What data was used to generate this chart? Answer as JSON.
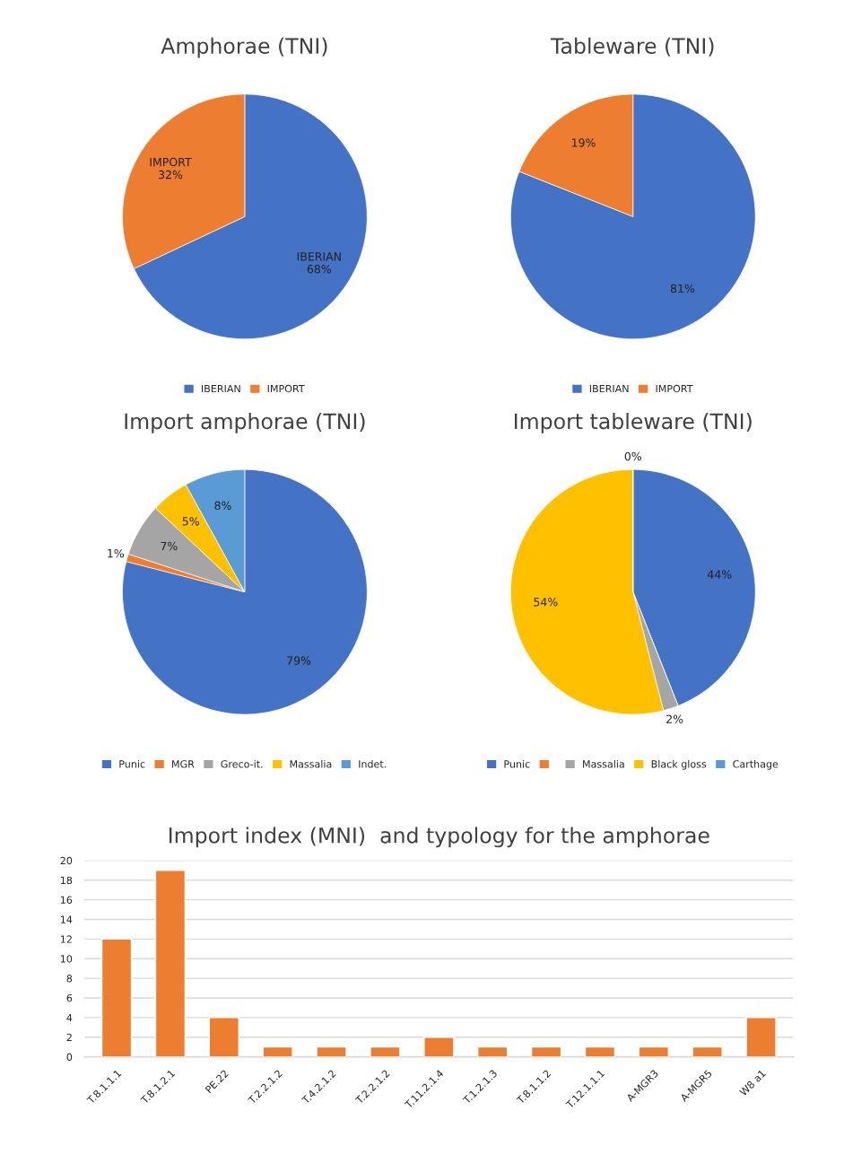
{
  "chart_data": [
    {
      "type": "pie",
      "title": "Amphorae (TNI)",
      "categories": [
        "IBERIAN",
        "IMPORT"
      ],
      "values": [
        68,
        32
      ],
      "colors": [
        "#4472c4",
        "#ed7d31"
      ],
      "value_labels": [
        "IBERIAN\n68%",
        "IMPORT\n32%"
      ],
      "legend": "bottom"
    },
    {
      "type": "pie",
      "title": "Tableware (TNI)",
      "categories": [
        "IBERIAN",
        "IMPORT"
      ],
      "values": [
        81,
        19
      ],
      "colors": [
        "#4472c4",
        "#ed7d31"
      ],
      "value_labels": [
        "81%",
        "19%"
      ],
      "legend": "bottom"
    },
    {
      "type": "pie",
      "title": "Import amphorae (TNI)",
      "categories": [
        "Punic",
        "MGR",
        "Greco-it.",
        "Massalia",
        "Indet."
      ],
      "values": [
        79,
        1,
        7,
        5,
        8
      ],
      "colors": [
        "#4472c4",
        "#ed7d31",
        "#a5a5a5",
        "#ffc000",
        "#5b9bd5"
      ],
      "value_labels": [
        "79%",
        "1%",
        "7%",
        "5%",
        "8%"
      ],
      "legend": "bottom"
    },
    {
      "type": "pie",
      "title": "Import tableware (TNI)",
      "categories": [
        "Punic",
        null,
        "Massalia",
        "Black gloss",
        "Carthage"
      ],
      "values": [
        44,
        0,
        2,
        54,
        0
      ],
      "colors": [
        "#4472c4",
        "#ed7d31",
        "#a5a5a5",
        "#ffc000",
        "#5b9bd5"
      ],
      "value_labels": [
        "44%",
        null,
        "2%",
        "54%",
        "0%"
      ],
      "legend": "bottom"
    },
    {
      "type": "bar",
      "title": "Import index (MNI)  and typology for the amphorae",
      "categories": [
        "T.8.1.1.1",
        "T.8.1.2.1",
        "PE.22",
        "T.2.2.1.2",
        "T.4.2.1.2",
        "T.2.2.1.2",
        "T.11.2.1.4",
        "T.1.2.1.3",
        "T.8.1.1.2",
        "T.12.1.1.1",
        "A-MGR3",
        "A-MGR5",
        "W8 a1"
      ],
      "values": [
        12,
        19,
        4,
        1,
        1,
        1,
        2,
        1,
        1,
        1,
        1,
        1,
        4
      ],
      "color": "#ed7d31",
      "ylim": [
        0,
        20
      ],
      "yticks": [
        0,
        2,
        4,
        6,
        8,
        10,
        12,
        14,
        16,
        18,
        20
      ],
      "grid": "y"
    }
  ]
}
